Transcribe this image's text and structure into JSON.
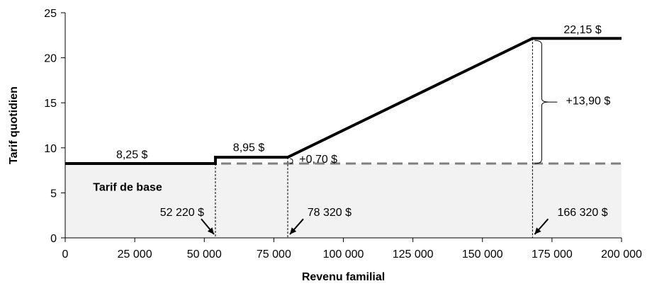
{
  "chart_data": {
    "type": "line",
    "title": "",
    "xlabel": "Revenu familial",
    "ylabel": "Tarif quotidien",
    "xlim": [
      0,
      200000
    ],
    "ylim": [
      0,
      25
    ],
    "grid": false,
    "x_ticks": [
      0,
      25000,
      50000,
      75000,
      100000,
      125000,
      150000,
      175000,
      200000
    ],
    "x_tick_labels": [
      "0",
      "25 000",
      "50 000",
      "75 000",
      "100 000",
      "125 000",
      "150 000",
      "175 000",
      "200 000"
    ],
    "y_ticks": [
      0,
      5,
      10,
      15,
      20,
      25
    ],
    "y_tick_labels": [
      "0",
      "5",
      "10",
      "15",
      "20",
      "25"
    ],
    "series": [
      {
        "style": "solid-thick",
        "color": "#000000",
        "points": [
          [
            0,
            8.25
          ],
          [
            54000,
            8.25
          ],
          [
            54000,
            8.95
          ],
          [
            80000,
            8.95
          ],
          [
            168000,
            22.15
          ],
          [
            200000,
            22.15
          ]
        ]
      },
      {
        "style": "dashed",
        "color": "#808080",
        "points": [
          [
            0,
            8.25
          ],
          [
            200000,
            8.25
          ]
        ]
      }
    ],
    "base_fill": {
      "y": 8.25,
      "color": "#f2f2f2"
    },
    "base_label": "Tarif de base",
    "threshold_lines": [
      54000,
      80000,
      168000
    ],
    "annotations": [
      {
        "id": "label-825",
        "text": "8,25 $",
        "x": 24000,
        "y": 9.3
      },
      {
        "id": "label-895",
        "text": "8,95 $",
        "x": 66000,
        "y": 10.1
      },
      {
        "id": "label-2215",
        "text": "22,15 $",
        "x": 186000,
        "y": 23.2
      },
      {
        "id": "label-070",
        "text": "+0,70 $",
        "x": 91000,
        "y": 8.8
      },
      {
        "id": "label-1390",
        "text": "+13,90 $",
        "x": 188000,
        "y": 15.3
      },
      {
        "id": "label-52220",
        "text": "52 220 $",
        "x": 42000,
        "y": 2.9
      },
      {
        "id": "label-78320",
        "text": "78 320 $",
        "x": 95000,
        "y": 2.9
      },
      {
        "id": "label-166320",
        "text": "166 320 $",
        "x": 186000,
        "y": 2.9
      }
    ]
  }
}
